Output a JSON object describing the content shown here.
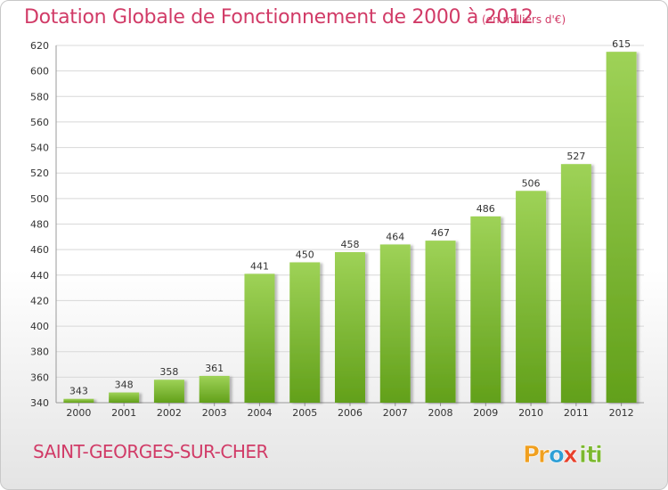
{
  "title": "Dotation Globale de Fonctionnement de 2000 à 2012",
  "subtitle": "(en milliers d'€)",
  "commune": "SAINT-GEORGES-SUR-CHER",
  "logo": {
    "text": "Proxiti",
    "letters": [
      "P",
      "r",
      "o",
      "x",
      "i",
      "t",
      "i"
    ],
    "colors": [
      "#f0a020",
      "#f0a020",
      "#2e9fd6",
      "#e8412c",
      "#7cb82f",
      "#7cb82f",
      "#7cb82f"
    ]
  },
  "colors": {
    "accent": "#d13b67",
    "bar_top": "#9ed257",
    "bar_bottom": "#62a01a",
    "grid": "#d8d8d8"
  },
  "chart_data": {
    "type": "bar",
    "title": "Dotation Globale de Fonctionnement de 2000 à 2012",
    "subtitle": "(en milliers d'€)",
    "xlabel": "",
    "ylabel": "",
    "categories": [
      "2000",
      "2001",
      "2002",
      "2003",
      "2004",
      "2005",
      "2006",
      "2007",
      "2008",
      "2009",
      "2010",
      "2011",
      "2012"
    ],
    "values": [
      343,
      348,
      358,
      361,
      441,
      450,
      458,
      464,
      467,
      486,
      506,
      527,
      615
    ],
    "ylim": [
      340,
      620
    ],
    "yticks": [
      340,
      360,
      380,
      400,
      420,
      440,
      460,
      480,
      500,
      520,
      540,
      560,
      580,
      600,
      620
    ],
    "grid": true,
    "data_labels": true
  }
}
